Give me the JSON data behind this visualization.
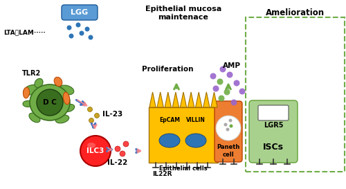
{
  "bg_color": "#ffffff",
  "lgg_color": "#5b9bd5",
  "lgg_text": "LGG",
  "lta_lam_text": "LTA、LAM·····",
  "tlr2_text": "TLR2",
  "dc_color": "#70ad47",
  "dc_label": "D C",
  "dc_receptor_color": "#ed7d31",
  "il23_text": "IL-23",
  "ilc3_color": "#ff2222",
  "ilc3_label": "ILC3",
  "il22_text": "IL-22",
  "il22r_text": "IL22R",
  "proliferation_text": "Proliferation",
  "epithelial_mucosa_text": "Epithelial mucosa\nmaintenace",
  "amelioration_text": "Amelioration",
  "amp_text": "AMP",
  "epcam_text": "EpCAM",
  "villin_text": "VILLIN",
  "epithelial_cells_text": "Epithelial cells",
  "paneth_cell_text": "Paneth\ncell",
  "lgr5_text": "LGR5",
  "iscs_text": "ISCs",
  "blue_dot_color": "#2e75b6",
  "gold_dot_color": "#c9a227",
  "red_dot_color": "#ff4444",
  "purple_dot_color": "#9966cc",
  "green_dot_color": "#70ad47",
  "arrow_blue_color": "#4472c4",
  "arrow_red_color": "#ff8888",
  "arrow_green_color": "#70ad47",
  "epithelial_gold_color": "#ffc000",
  "paneth_orange_color": "#ed7d31",
  "isc_green_color": "#a9d18e",
  "nucleus_blue_color": "#2e75b6"
}
